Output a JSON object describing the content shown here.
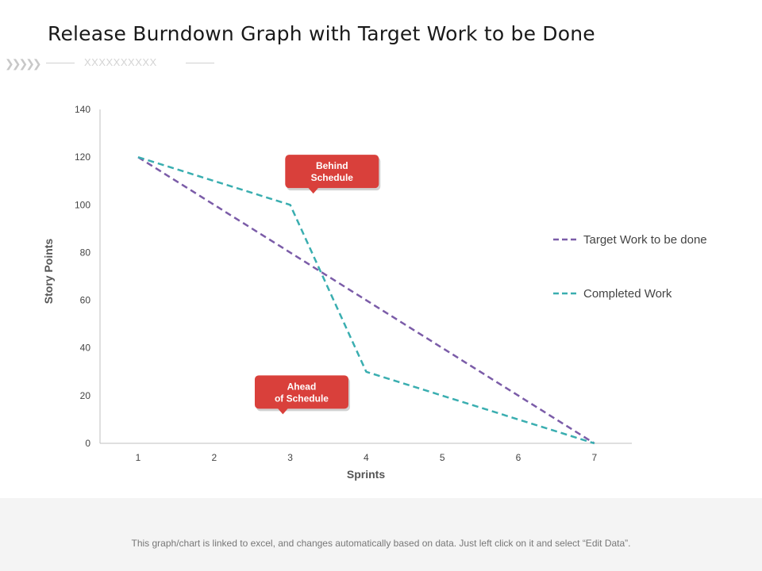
{
  "page": {
    "title": "Release Burndown Graph with Target Work to be Done",
    "subtitle_placeholder": "XXXXXXXXXX",
    "footer_note": "This graph/chart is linked to excel, and changes automatically based on data. Just left click on it and select “Edit Data”."
  },
  "colors": {
    "target": "#7b5ca8",
    "completed": "#3aaeb0",
    "callout": "#d9403b",
    "axis": "#bfbfbf"
  },
  "chart_data": {
    "type": "line",
    "xlabel": "Sprints",
    "ylabel": "Story Points",
    "x": [
      1,
      2,
      3,
      4,
      5,
      6,
      7
    ],
    "ylim": [
      0,
      140
    ],
    "yticks": [
      0,
      20,
      40,
      60,
      80,
      100,
      120,
      140
    ],
    "grid": false,
    "legend_position": "right",
    "series": [
      {
        "name": "Target Work to be done",
        "values": [
          120,
          100,
          80,
          60,
          40,
          20,
          0
        ],
        "style": "dashed"
      },
      {
        "name": "Completed Work",
        "values": [
          120,
          110,
          100,
          30,
          20,
          10,
          0
        ],
        "style": "dashed"
      }
    ],
    "annotations": [
      {
        "lines": [
          "Behind",
          "Schedule"
        ],
        "x": 3.55,
        "y": 114
      },
      {
        "lines": [
          "Ahead",
          "of Schedule"
        ],
        "x": 3.15,
        "y": 21.5
      }
    ]
  }
}
